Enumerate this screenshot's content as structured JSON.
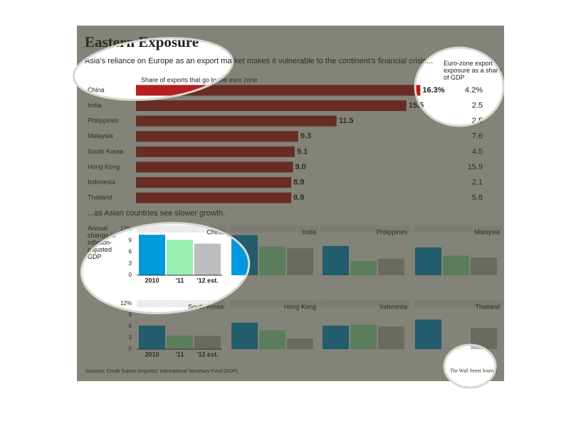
{
  "chart_data": [
    {
      "type": "hbar",
      "title": "Eastern Exposure",
      "subtitle": "Asia’s reliance on Europe as an export market makes it vulnerable to the continent’s financial crisis...",
      "categories": [
        "China",
        "India",
        "Philippines",
        "Malaysia",
        "South Korea",
        "Hong Kong",
        "Indonesia",
        "Thailand"
      ],
      "series": [
        {
          "name": "Share of exports that go to the euro zone",
          "color": "#b51f1f",
          "values": [
            16.3,
            15.5,
            11.5,
            9.3,
            9.1,
            9.0,
            8.9,
            8.9
          ],
          "value_labels": [
            "16.3%",
            "15.5",
            "11.5",
            "9.3",
            "9.1",
            "9.0",
            "8.9",
            "8.9"
          ]
        },
        {
          "name": "Euro-zone export exposure as a share of GDP",
          "values": [
            4.2,
            2.5,
            2.5,
            7.6,
            4.5,
            15.9,
            2.1,
            5.8
          ],
          "value_labels": [
            "4.2%",
            "2.5",
            "2.5",
            "7.6",
            "4.5",
            "15.9",
            "2.1",
            "5.8"
          ]
        }
      ]
    },
    {
      "type": "bar_multiples",
      "subtitle": "...as Asian countries see slower growth.",
      "ylabel": "Annual change in inflation-adjusted GDP",
      "categories": [
        "China",
        "India",
        "Philippines",
        "Malaysia",
        "South Korea",
        "Hong Kong",
        "Indonesia",
        "Thailand"
      ],
      "series": [
        {
          "name": "2010",
          "color": "#0099dd",
          "values": [
            10.5,
            10.4,
            7.6,
            7.2,
            6.2,
            7.0,
            6.2,
            7.8
          ]
        },
        {
          "name": "'11",
          "color": "#99f0b0",
          "values": [
            9.2,
            7.4,
            3.7,
            5.1,
            3.6,
            5.0,
            6.5,
            0.1
          ]
        },
        {
          "name": "'12 est.",
          "color": "#bdbdbd",
          "values": [
            8.2,
            7.0,
            4.3,
            4.6,
            3.5,
            2.8,
            6.0,
            5.6
          ]
        }
      ],
      "ylim": [
        0,
        12
      ],
      "yticks": [
        0,
        3,
        6,
        9,
        {
          "value": 12,
          "label": "12%"
        }
      ],
      "source": "Sources: Credit Suisse (exports); International Monetary Fund (GDP)",
      "credit": "The Wall Street Journal"
    }
  ]
}
